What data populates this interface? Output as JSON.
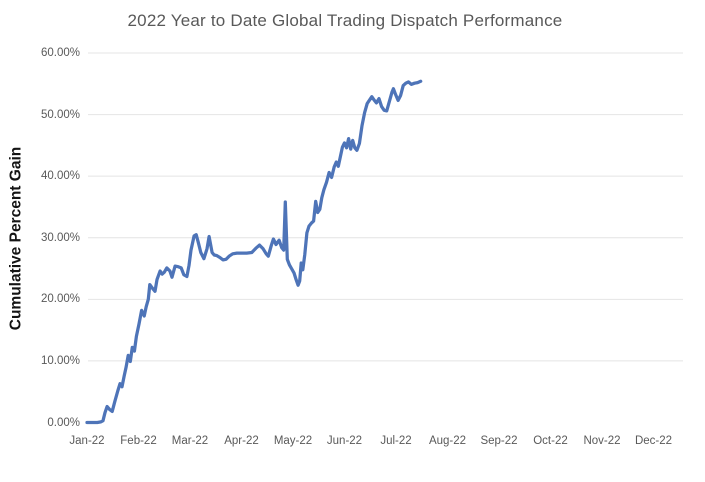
{
  "title": "2022 Year to Date Global Trading Dispatch Performance",
  "colors": {
    "line": "#4E74B8",
    "grid": "#E4E4E4",
    "title_text": "#595959",
    "tick_text": "#595959",
    "axis_title_text": "#141414",
    "background": "#FFFFFF"
  },
  "chart_data": {
    "type": "line",
    "title": "2022 Year to Date Global Trading Dispatch Performance",
    "xlabel": "",
    "ylabel": "Cumulative Percent Gain",
    "x_unit": "months since Jan-22 tick",
    "x_tick_labels": [
      "Jan-22",
      "Feb-22",
      "Mar-22",
      "Apr-22",
      "May-22",
      "Jun-22",
      "Jul-22",
      "Aug-22",
      "Sep-22",
      "Oct-22",
      "Nov-22",
      "Dec-22"
    ],
    "y_tick_labels": [
      "0.00%",
      "10.00%",
      "20.00%",
      "30.00%",
      "40.00%",
      "50.00%",
      "60.00%"
    ],
    "y_tick_values": [
      0,
      10,
      20,
      30,
      40,
      50,
      60
    ],
    "ylim": [
      0,
      60
    ],
    "xlim": [
      0,
      11.6
    ],
    "grid": "horizontal-only-above-zero",
    "legend": "none",
    "series": [
      {
        "name": "Cumulative Percent Gain",
        "points": [
          [
            0.0,
            0.0
          ],
          [
            0.1,
            0.0
          ],
          [
            0.2,
            0.0
          ],
          [
            0.27,
            0.1
          ],
          [
            0.31,
            0.3
          ],
          [
            0.35,
            1.6
          ],
          [
            0.39,
            2.6
          ],
          [
            0.44,
            2.1
          ],
          [
            0.49,
            1.8
          ],
          [
            0.54,
            3.4
          ],
          [
            0.6,
            5.2
          ],
          [
            0.64,
            6.3
          ],
          [
            0.68,
            5.8
          ],
          [
            0.72,
            7.5
          ],
          [
            0.76,
            9.0
          ],
          [
            0.8,
            10.9
          ],
          [
            0.84,
            9.9
          ],
          [
            0.88,
            12.2
          ],
          [
            0.92,
            11.6
          ],
          [
            0.96,
            14.0
          ],
          [
            1.01,
            16.0
          ],
          [
            1.06,
            18.2
          ],
          [
            1.11,
            17.3
          ],
          [
            1.15,
            18.8
          ],
          [
            1.19,
            20.0
          ],
          [
            1.22,
            22.4
          ],
          [
            1.27,
            21.8
          ],
          [
            1.32,
            21.3
          ],
          [
            1.36,
            23.2
          ],
          [
            1.42,
            24.6
          ],
          [
            1.46,
            24.1
          ],
          [
            1.5,
            24.4
          ],
          [
            1.55,
            25.1
          ],
          [
            1.61,
            24.6
          ],
          [
            1.65,
            23.6
          ],
          [
            1.71,
            25.4
          ],
          [
            1.77,
            25.3
          ],
          [
            1.83,
            25.1
          ],
          [
            1.88,
            24.0
          ],
          [
            1.94,
            23.7
          ],
          [
            1.98,
            25.5
          ],
          [
            2.02,
            28.0
          ],
          [
            2.08,
            30.3
          ],
          [
            2.12,
            30.5
          ],
          [
            2.16,
            29.3
          ],
          [
            2.21,
            27.6
          ],
          [
            2.27,
            26.6
          ],
          [
            2.33,
            28.2
          ],
          [
            2.37,
            30.2
          ],
          [
            2.43,
            27.6
          ],
          [
            2.47,
            27.2
          ],
          [
            2.52,
            27.1
          ],
          [
            2.58,
            26.8
          ],
          [
            2.64,
            26.4
          ],
          [
            2.7,
            26.5
          ],
          [
            2.76,
            27.0
          ],
          [
            2.83,
            27.4
          ],
          [
            2.91,
            27.5
          ],
          [
            3.0,
            27.5
          ],
          [
            3.1,
            27.5
          ],
          [
            3.2,
            27.6
          ],
          [
            3.28,
            28.3
          ],
          [
            3.35,
            28.8
          ],
          [
            3.42,
            28.2
          ],
          [
            3.48,
            27.4
          ],
          [
            3.52,
            27.0
          ],
          [
            3.58,
            28.8
          ],
          [
            3.62,
            29.8
          ],
          [
            3.67,
            28.9
          ],
          [
            3.73,
            29.6
          ],
          [
            3.78,
            28.4
          ],
          [
            3.82,
            28.0
          ],
          [
            3.85,
            35.8
          ],
          [
            3.89,
            26.5
          ],
          [
            3.93,
            25.6
          ],
          [
            3.97,
            25.0
          ],
          [
            4.02,
            24.3
          ],
          [
            4.06,
            23.2
          ],
          [
            4.1,
            22.3
          ],
          [
            4.13,
            23.0
          ],
          [
            4.16,
            25.9
          ],
          [
            4.19,
            24.8
          ],
          [
            4.23,
            27.3
          ],
          [
            4.27,
            30.8
          ],
          [
            4.31,
            31.9
          ],
          [
            4.36,
            32.4
          ],
          [
            4.4,
            32.7
          ],
          [
            4.44,
            35.9
          ],
          [
            4.48,
            34.1
          ],
          [
            4.52,
            34.6
          ],
          [
            4.56,
            36.5
          ],
          [
            4.6,
            37.8
          ],
          [
            4.65,
            39.0
          ],
          [
            4.7,
            40.6
          ],
          [
            4.75,
            39.8
          ],
          [
            4.8,
            41.5
          ],
          [
            4.84,
            42.3
          ],
          [
            4.88,
            41.6
          ],
          [
            4.92,
            43.2
          ],
          [
            4.96,
            44.7
          ],
          [
            5.0,
            45.4
          ],
          [
            5.04,
            44.6
          ],
          [
            5.08,
            46.1
          ],
          [
            5.12,
            44.4
          ],
          [
            5.16,
            45.8
          ],
          [
            5.2,
            44.6
          ],
          [
            5.24,
            44.2
          ],
          [
            5.29,
            45.3
          ],
          [
            5.34,
            48.2
          ],
          [
            5.39,
            50.3
          ],
          [
            5.44,
            51.8
          ],
          [
            5.49,
            52.4
          ],
          [
            5.53,
            52.9
          ],
          [
            5.58,
            52.3
          ],
          [
            5.62,
            51.9
          ],
          [
            5.67,
            52.6
          ],
          [
            5.72,
            51.3
          ],
          [
            5.77,
            50.7
          ],
          [
            5.82,
            50.6
          ],
          [
            5.87,
            52.1
          ],
          [
            5.92,
            53.6
          ],
          [
            5.95,
            54.2
          ],
          [
            5.99,
            53.3
          ],
          [
            6.04,
            52.3
          ],
          [
            6.09,
            53.1
          ],
          [
            6.14,
            54.7
          ],
          [
            6.19,
            55.1
          ],
          [
            6.24,
            55.3
          ],
          [
            6.3,
            54.9
          ],
          [
            6.36,
            55.1
          ],
          [
            6.42,
            55.2
          ],
          [
            6.48,
            55.4
          ]
        ]
      }
    ]
  }
}
